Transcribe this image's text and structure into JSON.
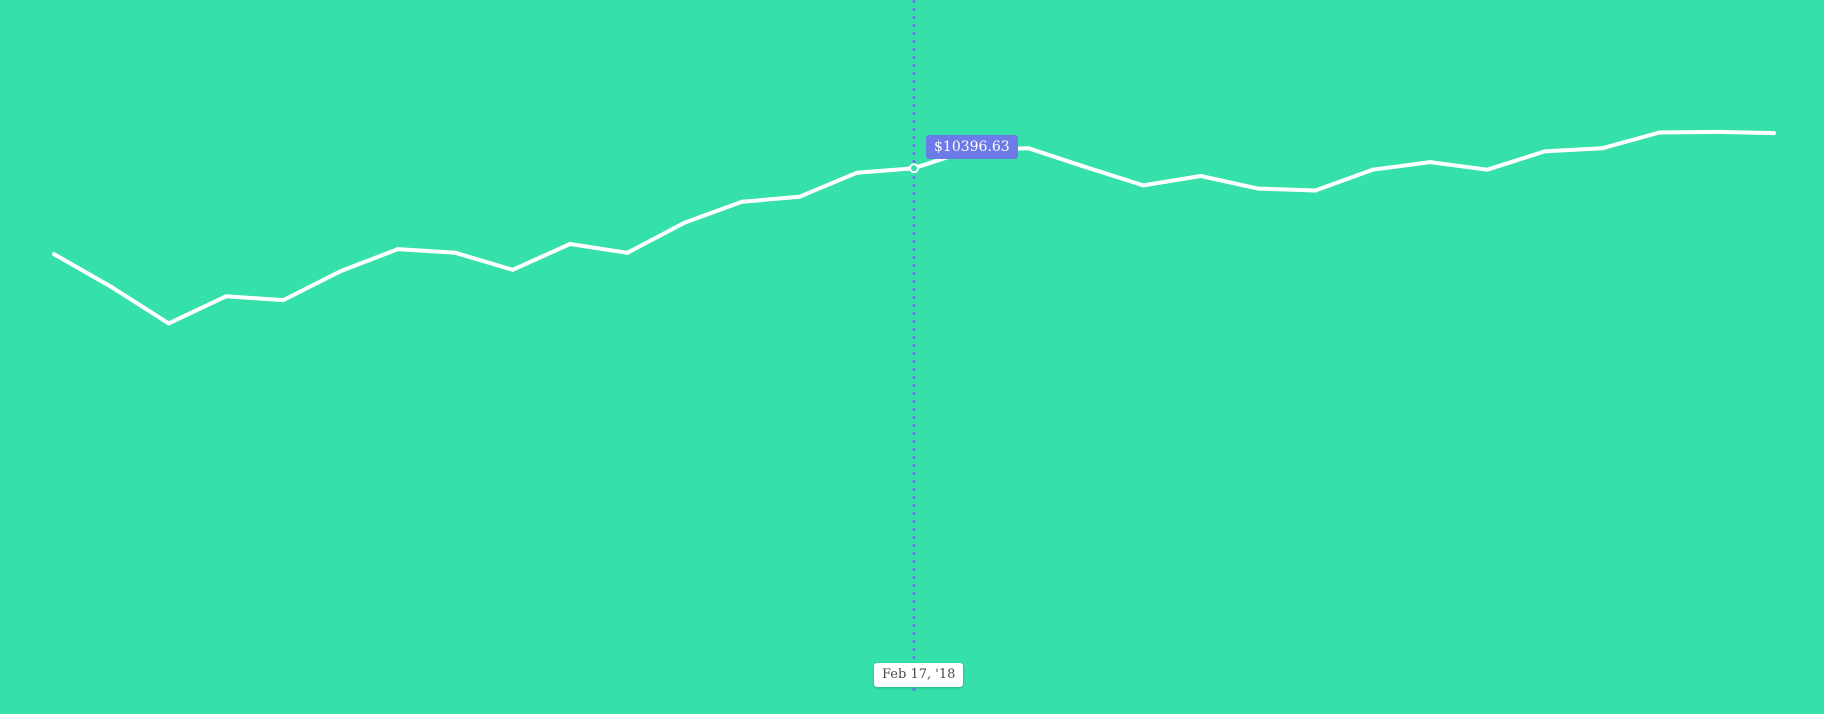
{
  "colors": {
    "background": "#35e0aa",
    "line": "#ffffff",
    "crosshair": "#6d7be6",
    "tooltip_value_bg": "#6d7be6",
    "tooltip_date_bg": "#ffffff"
  },
  "tooltip": {
    "value": "$10396.63",
    "date": "Feb 17, '18"
  },
  "chart_data": {
    "type": "line",
    "title": "",
    "xlabel": "",
    "ylabel": "",
    "grid": false,
    "ylim": [
      0,
      13600
    ],
    "hover_index": 15,
    "series": [
      {
        "values": [
          8760,
          8136,
          7440,
          7956,
          7884,
          8436,
          8856,
          8784,
          8460,
          8952,
          8784,
          9360,
          9756,
          9852,
          10308,
          10396.63,
          10752,
          10776,
          10416,
          10068,
          10248,
          10008,
          9972,
          10368,
          10512,
          10368,
          10716,
          10776,
          11076,
          11088,
          11064
        ]
      }
    ]
  }
}
